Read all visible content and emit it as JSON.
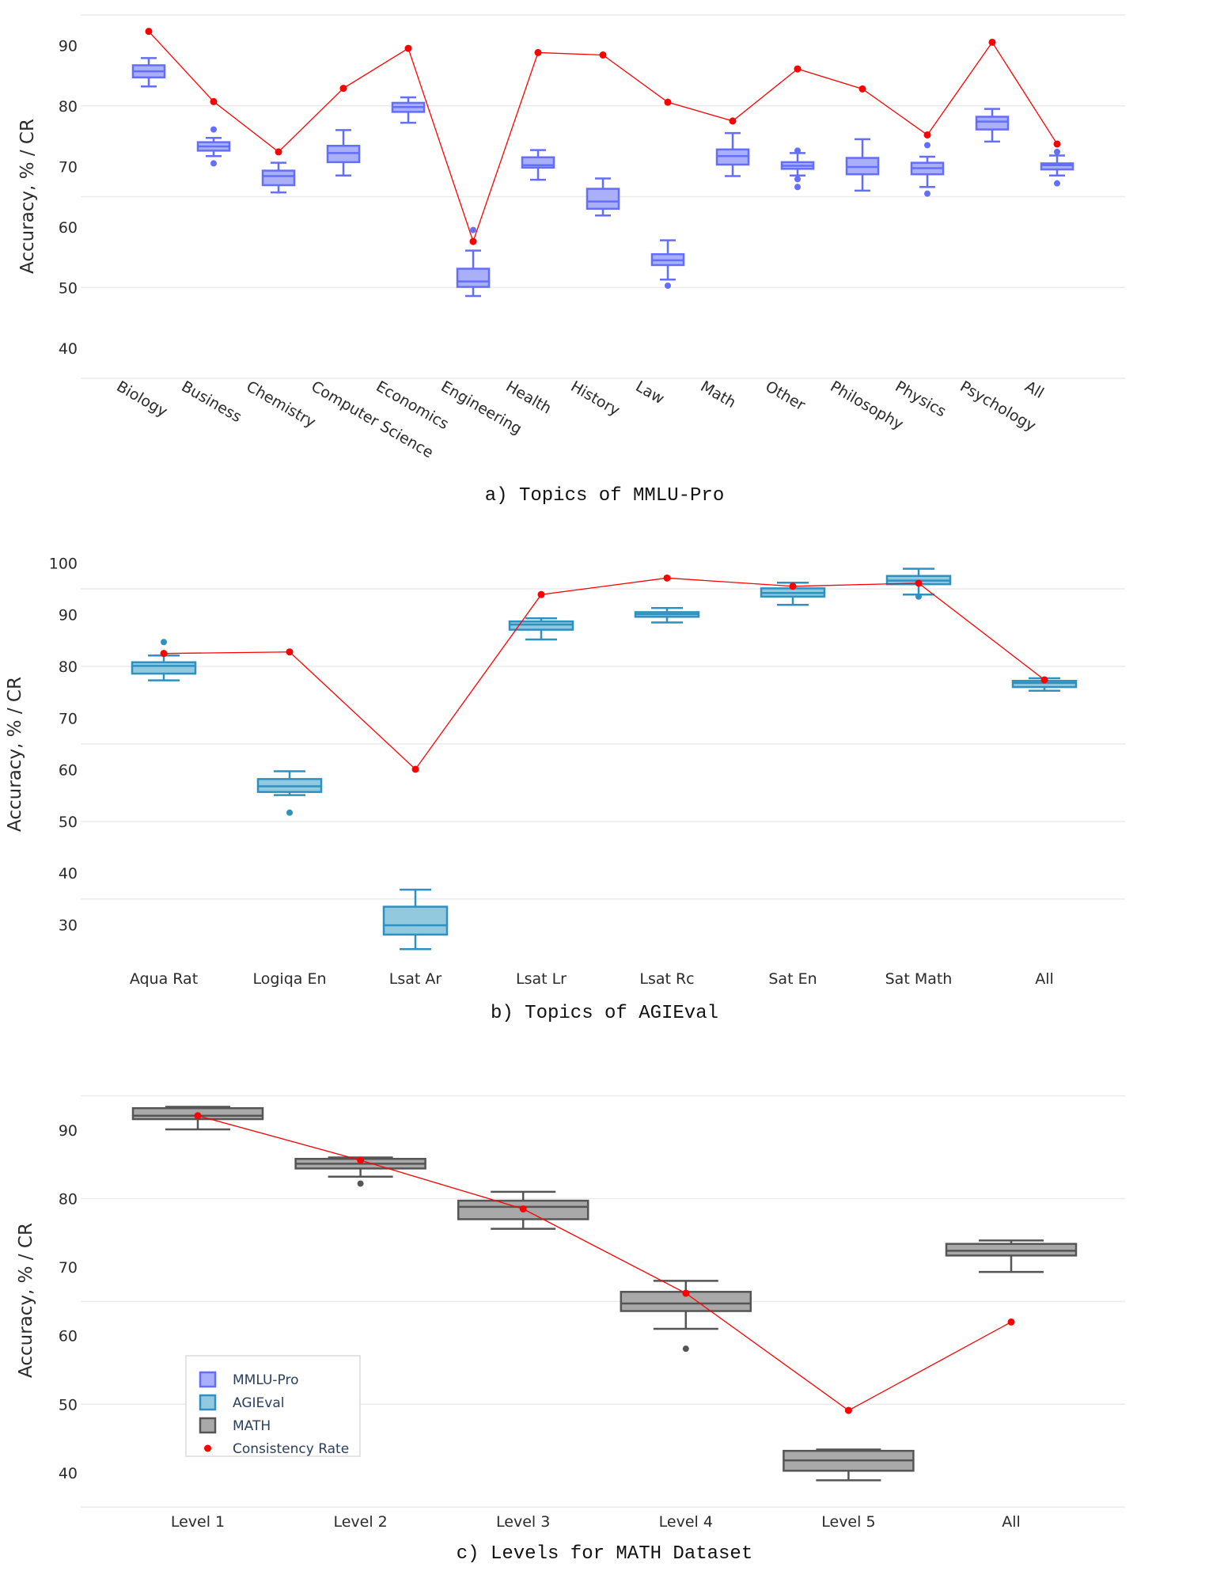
{
  "chart_data": [
    {
      "type": "box",
      "id": "a",
      "caption": "a) Topics of MMLU-Pro",
      "ylabel": "Accuracy, % / CR",
      "ylim": [
        35,
        95
      ],
      "yticks": [
        40,
        50,
        60,
        70,
        80,
        90
      ],
      "gridlines": [
        35,
        50,
        65,
        80,
        95
      ],
      "x_tick_rotation": "tilted 30° clockwise",
      "box_series": "MMLU-Pro",
      "categories": [
        "Biology",
        "Business",
        "Chemistry",
        "Computer Science",
        "Economics",
        "Engineering",
        "Health",
        "History",
        "Law",
        "Math",
        "Other",
        "Philosophy",
        "Physics",
        "Psychology",
        "All"
      ],
      "boxes": [
        {
          "low": 83.2,
          "q1": 84.7,
          "median": 85.7,
          "q3": 86.7,
          "high": 87.9,
          "outliers": []
        },
        {
          "low": 71.7,
          "q1": 72.6,
          "median": 73.3,
          "q3": 74.0,
          "high": 74.7,
          "outliers": [
            76.1,
            70.5
          ]
        },
        {
          "low": 65.7,
          "q1": 66.9,
          "median": 68.4,
          "q3": 69.3,
          "high": 70.6,
          "outliers": []
        },
        {
          "low": 68.5,
          "q1": 70.7,
          "median": 72.2,
          "q3": 73.4,
          "high": 76.0,
          "outliers": []
        },
        {
          "low": 77.2,
          "q1": 79.0,
          "median": 79.8,
          "q3": 80.5,
          "high": 81.4,
          "outliers": []
        },
        {
          "low": 48.6,
          "q1": 50.1,
          "median": 51.0,
          "q3": 53.1,
          "high": 56.1,
          "outliers": [
            59.5
          ]
        },
        {
          "low": 67.8,
          "q1": 69.8,
          "median": 70.2,
          "q3": 71.5,
          "high": 72.7,
          "outliers": []
        },
        {
          "low": 61.9,
          "q1": 63.0,
          "median": 64.2,
          "q3": 66.3,
          "high": 68.0,
          "outliers": []
        },
        {
          "low": 51.3,
          "q1": 53.7,
          "median": 54.5,
          "q3": 55.5,
          "high": 57.8,
          "outliers": [
            50.3
          ]
        },
        {
          "low": 68.4,
          "q1": 70.3,
          "median": 71.7,
          "q3": 72.8,
          "high": 75.5,
          "outliers": []
        },
        {
          "low": 68.5,
          "q1": 69.6,
          "median": 70.1,
          "q3": 70.7,
          "high": 72.2,
          "outliers": [
            72.6,
            67.9,
            66.6
          ]
        },
        {
          "low": 66.0,
          "q1": 68.7,
          "median": 69.9,
          "q3": 71.4,
          "high": 74.5,
          "outliers": []
        },
        {
          "low": 66.6,
          "q1": 68.7,
          "median": 69.7,
          "q3": 70.6,
          "high": 71.6,
          "outliers": [
            73.5,
            65.5
          ]
        },
        {
          "low": 74.1,
          "q1": 76.1,
          "median": 77.4,
          "q3": 78.2,
          "high": 79.5,
          "outliers": []
        },
        {
          "low": 68.5,
          "q1": 69.5,
          "median": 70.2,
          "q3": 70.5,
          "high": 71.8,
          "outliers": [
            72.4,
            67.2
          ]
        }
      ],
      "consistency_rate": [
        92.3,
        80.7,
        72.4,
        82.9,
        89.5,
        57.6,
        88.8,
        88.4,
        80.6,
        77.5,
        86.1,
        82.8,
        75.2,
        90.5,
        73.7
      ]
    },
    {
      "type": "box",
      "id": "b",
      "caption": "b) Topics of AGIEval",
      "ylabel": "Accuracy, % / CR",
      "ylim": [
        22,
        102
      ],
      "yticks": [
        30,
        40,
        50,
        60,
        70,
        80,
        90,
        100
      ],
      "gridlines": [
        35,
        50,
        65,
        80,
        95
      ],
      "box_series": "AGIEval",
      "categories": [
        "Aqua Rat",
        "Logiqa En",
        "Lsat Ar",
        "Lsat Lr",
        "Lsat Rc",
        "Sat En",
        "Sat Math",
        "All"
      ],
      "boxes": [
        {
          "low": 77.3,
          "q1": 78.6,
          "median": 80.1,
          "q3": 80.8,
          "high": 82.1,
          "outliers": [
            84.7
          ]
        },
        {
          "low": 55.1,
          "q1": 55.7,
          "median": 56.8,
          "q3": 58.2,
          "high": 59.7,
          "outliers": [
            51.7
          ]
        },
        {
          "low": 25.3,
          "q1": 28.1,
          "median": 29.9,
          "q3": 33.5,
          "high": 36.8,
          "outliers": []
        },
        {
          "low": 85.2,
          "q1": 87.1,
          "median": 88.1,
          "q3": 88.7,
          "high": 89.3,
          "outliers": []
        },
        {
          "low": 88.5,
          "q1": 89.6,
          "median": 90.1,
          "q3": 90.5,
          "high": 91.3,
          "outliers": []
        },
        {
          "low": 91.9,
          "q1": 93.5,
          "median": 94.2,
          "q3": 95.1,
          "high": 96.2,
          "outliers": []
        },
        {
          "low": 93.9,
          "q1": 95.9,
          "median": 96.6,
          "q3": 97.5,
          "high": 98.9,
          "outliers": [
            93.5
          ]
        },
        {
          "low": 75.3,
          "q1": 76.0,
          "median": 76.8,
          "q3": 77.2,
          "high": 77.7,
          "outliers": []
        }
      ],
      "consistency_rate": [
        82.5,
        82.8,
        60.1,
        93.9,
        97.1,
        95.5,
        96.1,
        77.4
      ]
    },
    {
      "type": "box",
      "id": "c",
      "caption": "c) Levels for MATH Dataset",
      "ylabel": "Accuracy, % / CR",
      "ylim": [
        35,
        95
      ],
      "yticks": [
        40,
        50,
        60,
        70,
        80,
        90
      ],
      "gridlines": [
        35,
        50,
        65,
        80,
        95
      ],
      "box_series": "MATH",
      "categories": [
        "Level 1",
        "Level 2",
        "Level 3",
        "Level 4",
        "Level 5",
        "All"
      ],
      "boxes": [
        {
          "low": 90.1,
          "q1": 91.6,
          "median": 92.1,
          "q3": 93.2,
          "high": 93.4,
          "outliers": []
        },
        {
          "low": 83.2,
          "q1": 84.4,
          "median": 85.1,
          "q3": 85.8,
          "high": 86.0,
          "outliers": [
            82.2
          ]
        },
        {
          "low": 75.6,
          "q1": 77.0,
          "median": 78.8,
          "q3": 79.7,
          "high": 81.0,
          "outliers": []
        },
        {
          "low": 61.0,
          "q1": 63.6,
          "median": 64.7,
          "q3": 66.4,
          "high": 68.0,
          "outliers": [
            58.1
          ]
        },
        {
          "low": 38.9,
          "q1": 40.3,
          "median": 41.8,
          "q3": 43.2,
          "high": 43.4,
          "outliers": []
        },
        {
          "low": 69.3,
          "q1": 71.7,
          "median": 72.4,
          "q3": 73.4,
          "high": 73.9,
          "outliers": []
        }
      ],
      "consistency_rate": [
        92.1,
        85.6,
        78.5,
        66.2,
        49.1,
        62.0
      ],
      "legend": {
        "placement": "bottom-left",
        "items": [
          {
            "label": "MMLU-Pro",
            "symbol": "box",
            "fill": "#aab0f7",
            "stroke": "#636efa"
          },
          {
            "label": "AGIEval",
            "symbol": "box",
            "fill": "#93c9df",
            "stroke": "#2e91c0"
          },
          {
            "label": "MATH",
            "symbol": "box",
            "fill": "#a9a9a9",
            "stroke": "#555555"
          },
          {
            "label": "Consistency Rate",
            "symbol": "dot",
            "fill": "#ff0000",
            "stroke": "#ff0000"
          }
        ]
      }
    }
  ],
  "colors": {
    "MMLU-Pro": {
      "fill": "#aab0f7",
      "stroke": "#636efa"
    },
    "AGIEval": {
      "fill": "#93c9df",
      "stroke": "#2e91c0"
    },
    "MATH": {
      "fill": "#a9a9a9",
      "stroke": "#555555"
    },
    "Consistency Rate": {
      "fill": "#ff0000",
      "stroke": "#ff0000"
    }
  }
}
